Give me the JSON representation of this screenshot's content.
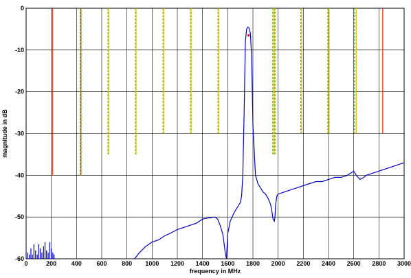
{
  "chart_data": {
    "type": "line",
    "title": "",
    "xlabel": "frequency in MHz",
    "ylabel": "magnitude in dB",
    "xlim": [
      0,
      3000
    ],
    "ylim": [
      -60,
      0
    ],
    "xticks": [
      0,
      200,
      400,
      600,
      800,
      1000,
      1200,
      1400,
      1600,
      1800,
      2000,
      2200,
      2400,
      2600,
      2800,
      3000
    ],
    "yticks": [
      0,
      -10,
      -20,
      -30,
      -40,
      -50,
      -60
    ],
    "grid": true,
    "colors": {
      "response": "#0000cc",
      "limit_red": "#e8401c",
      "limit_green": "#55bb11",
      "limit_yellow": "#e8c020",
      "marker": "#dd0000"
    },
    "series": [
      {
        "style": "solid",
        "color": "#0000cc",
        "x": [
          860,
          900,
          950,
          1000,
          1050,
          1100,
          1150,
          1200,
          1250,
          1300,
          1350,
          1400,
          1450,
          1500,
          1520,
          1540,
          1560,
          1570,
          1580,
          1590,
          1600,
          1620,
          1650,
          1680,
          1700,
          1710,
          1720,
          1730,
          1740,
          1750,
          1760,
          1770,
          1780,
          1790,
          1800,
          1820,
          1840,
          1860,
          1880,
          1900,
          1920,
          1940,
          1950,
          1960,
          1970,
          1975,
          1980,
          1990,
          2000,
          2050,
          2100,
          2150,
          2200,
          2250,
          2300,
          2350,
          2400,
          2450,
          2500,
          2550,
          2600,
          2620,
          2650,
          2680,
          2700,
          2750,
          2800,
          2850,
          2900,
          2950,
          3000
        ],
        "y": [
          -60,
          -58.5,
          -57,
          -56,
          -55.5,
          -54.5,
          -53.8,
          -53,
          -52.5,
          -52,
          -51.5,
          -50.5,
          -50.2,
          -50,
          -50.5,
          -52,
          -54,
          -56,
          -58.5,
          -60,
          -54,
          -51,
          -49,
          -47.5,
          -46.5,
          -45,
          -40,
          -25,
          -8,
          -5,
          -4.5,
          -4.8,
          -6,
          -12,
          -28,
          -40,
          -42,
          -43,
          -44,
          -44.5,
          -45.5,
          -47,
          -48.5,
          -50.5,
          -51,
          -50,
          -47,
          -45,
          -44.5,
          -44,
          -43.5,
          -43,
          -42.5,
          -42,
          -41.5,
          -41.5,
          -41,
          -40.5,
          -40.5,
          -40,
          -39,
          -40,
          -41,
          -40.5,
          -40,
          -39.5,
          -39,
          -38.5,
          -38,
          -37.5,
          -37
        ]
      }
    ],
    "limit_lines": [
      {
        "x": 210,
        "top": 0,
        "bottom": -40,
        "style": "solid",
        "color": "#e8401c"
      },
      {
        "x": 430,
        "top": 0,
        "bottom": -40,
        "style": "dashed",
        "color": "#55bb11"
      },
      {
        "x": 435,
        "top": 0,
        "bottom": -40,
        "style": "solid",
        "color": "#e8401c"
      },
      {
        "x": 650,
        "top": 0,
        "bottom": -35,
        "style": "dashed",
        "color": "#55bb11"
      },
      {
        "x": 655,
        "top": 0,
        "bottom": -35,
        "style": "solid",
        "color": "#e8c020"
      },
      {
        "x": 868,
        "top": 0,
        "bottom": -35,
        "style": "dashed",
        "color": "#55bb11"
      },
      {
        "x": 873,
        "top": 0,
        "bottom": -35,
        "style": "solid",
        "color": "#e8c020"
      },
      {
        "x": 1087,
        "top": 0,
        "bottom": -30,
        "style": "dashed",
        "color": "#55bb11"
      },
      {
        "x": 1092,
        "top": 0,
        "bottom": -30,
        "style": "solid",
        "color": "#e8c020"
      },
      {
        "x": 1305,
        "top": 0,
        "bottom": -30,
        "style": "dashed",
        "color": "#55bb11"
      },
      {
        "x": 1310,
        "top": 0,
        "bottom": -30,
        "style": "solid",
        "color": "#e8c020"
      },
      {
        "x": 1523,
        "top": 0,
        "bottom": -30,
        "style": "dashed",
        "color": "#55bb11"
      },
      {
        "x": 1528,
        "top": 0,
        "bottom": -30,
        "style": "solid",
        "color": "#e8c020"
      },
      {
        "x": 1958,
        "top": 0,
        "bottom": -35,
        "style": "dashed",
        "color": "#55bb11"
      },
      {
        "x": 1968,
        "top": 0,
        "bottom": -35,
        "style": "solid",
        "color": "#e8c020"
      },
      {
        "x": 1975,
        "top": 0,
        "bottom": -35,
        "style": "dashed",
        "color": "#55bb11"
      },
      {
        "x": 2180,
        "top": 0,
        "bottom": -30,
        "style": "dashed",
        "color": "#55bb11"
      },
      {
        "x": 2188,
        "top": 0,
        "bottom": -30,
        "style": "solid",
        "color": "#e8c020"
      },
      {
        "x": 2395,
        "top": 0,
        "bottom": -30,
        "style": "dashed",
        "color": "#55bb11"
      },
      {
        "x": 2405,
        "top": 0,
        "bottom": -30,
        "style": "solid",
        "color": "#e8c020"
      },
      {
        "x": 2607,
        "top": 0,
        "bottom": -30,
        "style": "dashed",
        "color": "#55bb11"
      },
      {
        "x": 2620,
        "top": 0,
        "bottom": -30,
        "style": "solid",
        "color": "#e8c020"
      },
      {
        "x": 2830,
        "top": 0,
        "bottom": -30,
        "style": "solid",
        "color": "#e8401c"
      }
    ],
    "spur_bars": {
      "color": "#0000cc",
      "x": [
        12,
        25,
        38,
        50,
        62,
        75,
        88,
        100,
        112,
        125,
        138,
        150,
        162,
        175,
        188,
        200,
        212,
        222
      ],
      "y": [
        -58.5,
        -59,
        -57.5,
        -59,
        -56.5,
        -58,
        -59,
        -56.5,
        -57.5,
        -58.5,
        -57,
        -56,
        -58,
        -58.5,
        -56,
        -57.5,
        -58.5,
        -59
      ]
    },
    "marker": {
      "x": 1765,
      "y": -6.5,
      "color": "#dd0000"
    }
  }
}
